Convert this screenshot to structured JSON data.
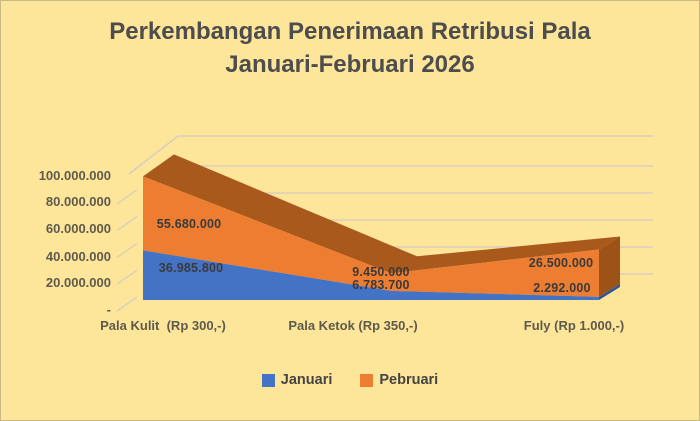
{
  "title": {
    "line1": "Perkembangan Penerimaan Retribusi Pala",
    "line2": "Januari-Februari 2026"
  },
  "chart_data": {
    "type": "area",
    "style": "3d-area",
    "title": "Perkembangan Penerimaan Retribusi Pala Januari-Februari 2026",
    "categories": [
      "Pala Kulit  (Rp 300,-)",
      "Pala Ketok (Rp 350,-)",
      "Fuly (Rp 1.000,-)"
    ],
    "series": [
      {
        "name": "Januari",
        "color": "#4472C4",
        "dark_color": "#2E5597",
        "values": [
          36985800,
          6783700,
          2292000
        ],
        "value_labels": [
          "36.985.800",
          "6.783.700",
          "2.292.000"
        ]
      },
      {
        "name": "Pebruari",
        "color": "#ED7D31",
        "dark_color": "#A9591C",
        "cap_color": "#9D5318",
        "values": [
          55680000,
          9450000,
          26500000
        ],
        "value_labels": [
          "55.680.000",
          "9.450.000",
          "26.500.000"
        ]
      }
    ],
    "y_axis": {
      "min": 0,
      "max": 100000000,
      "step": 20000000,
      "tick_labels": [
        "100.000.000",
        "80.000.000",
        "60.000.000",
        "40.000.000",
        "20.000.000",
        "-"
      ]
    },
    "legend": {
      "position": "bottom",
      "items": [
        "Januari",
        "Pebruari"
      ]
    },
    "grid": true,
    "background": "#FDE59A",
    "gridline_color": "#D9CFBC",
    "text_color": "#5E5A4C"
  }
}
